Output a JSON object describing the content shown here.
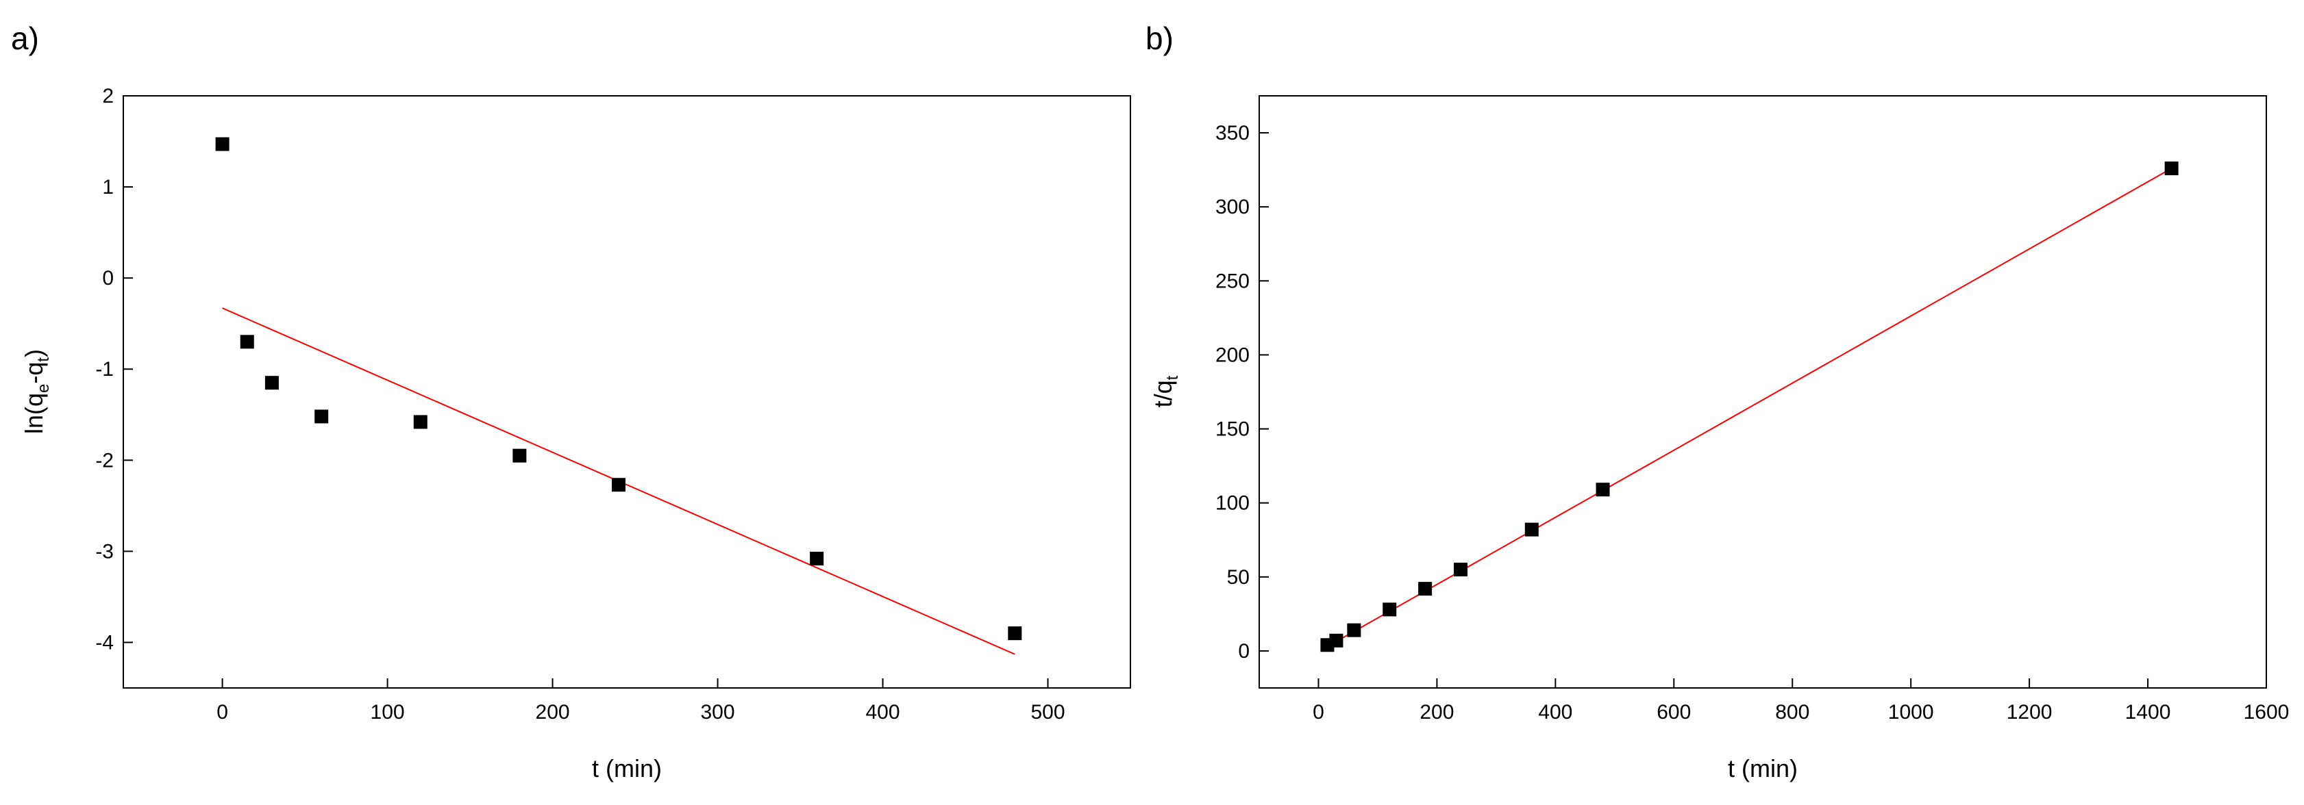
{
  "chart_data": [
    {
      "panel_label": "a)",
      "type": "scatter",
      "xlabel": "t (min)",
      "ylabel": {
        "main": "ln(q",
        "sub1": "e",
        "mid": "-q",
        "sub2": "t",
        "end": ")"
      },
      "xlim": [
        -60,
        550
      ],
      "ylim": [
        -4.5,
        2
      ],
      "xticks": [
        0,
        100,
        200,
        300,
        400,
        500
      ],
      "yticks": [
        -4,
        -3,
        -2,
        -1,
        0,
        1,
        2
      ],
      "points": {
        "x": [
          0,
          15,
          30,
          60,
          120,
          180,
          240,
          360,
          480
        ],
        "y": [
          1.47,
          -0.7,
          -1.15,
          -1.52,
          -1.58,
          -1.95,
          -2.27,
          -3.08,
          -3.9
        ]
      },
      "fit_line": {
        "x": [
          0,
          480
        ],
        "y": [
          -0.33,
          -4.13
        ]
      },
      "colors": {
        "points": "#000000",
        "fit": "#ff0000"
      }
    },
    {
      "panel_label": "b)",
      "type": "scatter",
      "xlabel": "t (min)",
      "ylabel": {
        "main": "t/q",
        "sub": "t"
      },
      "xlim": [
        -100,
        1600
      ],
      "ylim": [
        -25,
        375
      ],
      "xticks": [
        0,
        200,
        400,
        600,
        800,
        1000,
        1200,
        1400,
        1600
      ],
      "yticks": [
        0,
        50,
        100,
        150,
        200,
        250,
        300,
        350
      ],
      "points": {
        "x": [
          15,
          30,
          60,
          120,
          180,
          240,
          360,
          480,
          1440
        ],
        "y": [
          4,
          7,
          14,
          28,
          42,
          55,
          82,
          109,
          326
        ]
      },
      "fit_line": {
        "x": [
          15,
          1440
        ],
        "y": [
          3,
          326
        ]
      },
      "colors": {
        "points": "#000000",
        "fit": "#ff0000"
      }
    }
  ]
}
